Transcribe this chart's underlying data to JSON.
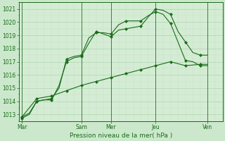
{
  "title": "",
  "xlabel": "Pression niveau de la mer( hPa )",
  "bg_color": "#cce8cc",
  "plot_bg_color": "#d4ecd4",
  "grid_major_color": "#b0d4b0",
  "grid_minor_color": "#c4dfc4",
  "line_color": "#1a6b1a",
  "ylim": [
    1012.5,
    1021.5
  ],
  "yticks": [
    1013,
    1014,
    1015,
    1016,
    1017,
    1018,
    1019,
    1020,
    1021
  ],
  "xlim": [
    -0.2,
    13.5
  ],
  "x_day_labels": [
    "Mar",
    "Sam",
    "Mer",
    "Jeu",
    "Ven"
  ],
  "x_day_positions": [
    0,
    4.0,
    6.0,
    9.0,
    12.5
  ],
  "x_vline_positions": [
    0,
    4.0,
    6.0,
    9.0,
    12.5
  ],
  "series": [
    {
      "x": [
        0,
        0.5,
        1,
        1.5,
        2,
        2.5,
        3,
        3.5,
        4,
        4.5,
        5,
        5.5,
        6,
        6.5,
        7,
        7.5,
        8,
        8.5,
        9,
        9.5,
        10,
        10.5,
        11,
        11.5,
        12,
        12.5
      ],
      "y": [
        1012.7,
        1013.0,
        1014.0,
        1014.1,
        1014.2,
        1015.0,
        1017.2,
        1017.4,
        1017.5,
        1018.8,
        1019.2,
        1019.2,
        1019.1,
        1019.8,
        1020.1,
        1020.1,
        1020.1,
        1020.5,
        1020.8,
        1020.6,
        1019.9,
        1018.5,
        1017.1,
        1017.0,
        1016.7,
        1016.7
      ]
    },
    {
      "x": [
        0,
        0.5,
        1,
        1.5,
        2,
        2.5,
        3,
        3.5,
        4,
        4.5,
        5,
        5.5,
        6,
        6.5,
        7,
        7.5,
        8,
        8.5,
        9,
        9.5,
        10,
        10.5,
        11,
        11.5,
        12,
        12.5
      ],
      "y": [
        1012.8,
        1013.1,
        1014.0,
        1014.1,
        1014.1,
        1015.2,
        1017.0,
        1017.3,
        1017.4,
        1018.4,
        1019.3,
        1019.1,
        1018.9,
        1019.4,
        1019.5,
        1019.6,
        1019.7,
        1020.4,
        1021.0,
        1020.9,
        1020.6,
        1019.3,
        1018.5,
        1017.7,
        1017.5,
        1017.5
      ]
    },
    {
      "x": [
        0,
        1,
        2,
        3,
        4,
        5,
        6,
        7,
        8,
        9,
        10,
        11,
        12,
        12.5
      ],
      "y": [
        1012.8,
        1014.2,
        1014.4,
        1014.8,
        1015.2,
        1015.5,
        1015.8,
        1016.1,
        1016.4,
        1016.7,
        1017.0,
        1016.7,
        1016.8,
        1016.8
      ]
    }
  ],
  "marker_series": [
    {
      "x": [
        0,
        1,
        2,
        3,
        4,
        5,
        6,
        7,
        8,
        9,
        10,
        11,
        12
      ],
      "y": [
        1012.7,
        1014.0,
        1014.2,
        1017.2,
        1017.5,
        1019.2,
        1019.1,
        1020.1,
        1020.1,
        1020.8,
        1019.9,
        1017.1,
        1016.7
      ]
    },
    {
      "x": [
        0,
        1,
        2,
        3,
        4,
        5,
        6,
        7,
        8,
        9,
        10,
        11,
        12
      ],
      "y": [
        1012.8,
        1014.0,
        1014.1,
        1017.0,
        1017.4,
        1019.3,
        1018.9,
        1019.5,
        1019.7,
        1021.0,
        1020.6,
        1018.5,
        1017.5
      ]
    },
    {
      "x": [
        0,
        1,
        2,
        3,
        4,
        5,
        6,
        7,
        8,
        9,
        10,
        11,
        12
      ],
      "y": [
        1012.8,
        1014.2,
        1014.4,
        1014.8,
        1015.2,
        1015.5,
        1015.8,
        1016.1,
        1016.4,
        1016.7,
        1017.0,
        1016.7,
        1016.8
      ]
    }
  ]
}
